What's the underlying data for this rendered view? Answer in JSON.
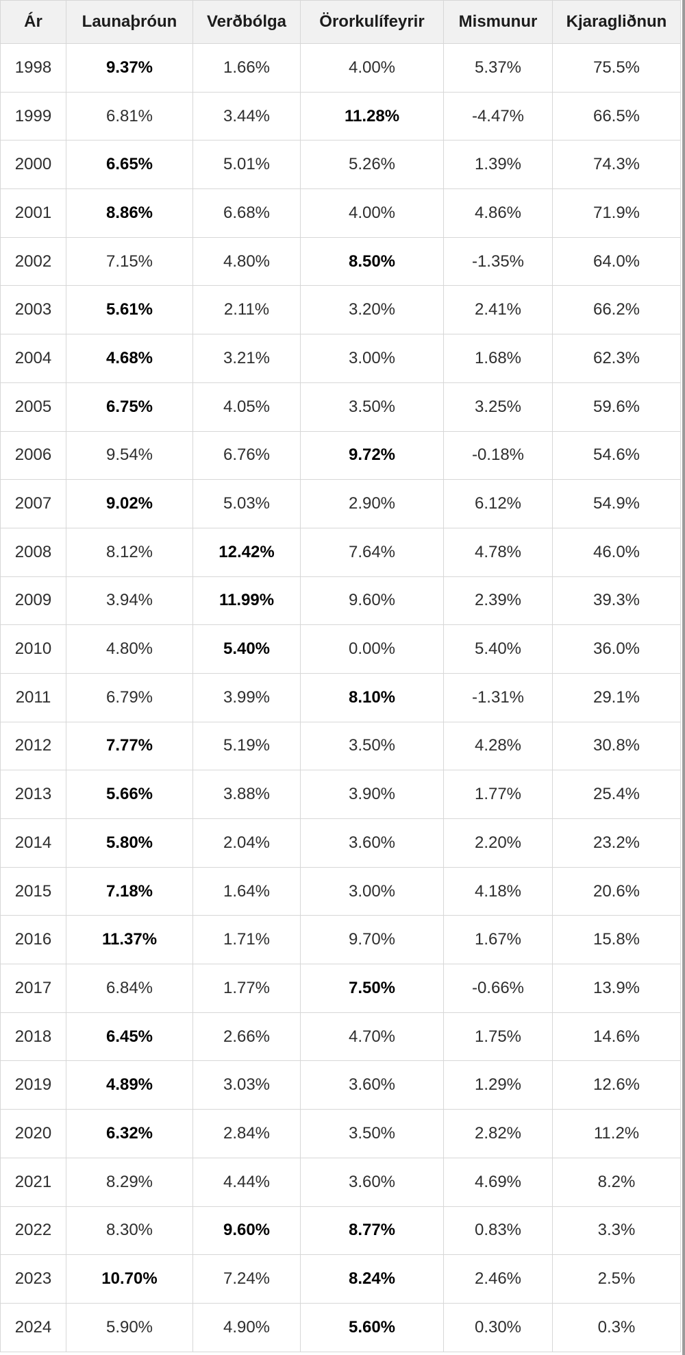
{
  "colors": {
    "header_bg": "#f1f1f1",
    "border": "#d7d7d7",
    "header_text": "#1c1c1c",
    "body_text": "#2e2e2e",
    "bold_text": "#000000",
    "scrollbar": "#9b9b9b"
  },
  "chart_data": {
    "type": "table",
    "title": "",
    "columns": [
      "Ár",
      "Launaþróun",
      "Verðbólga",
      "Örorkulífeyrir",
      "Mismunur",
      "Kjaragliðnun"
    ],
    "rows": [
      {
        "year": "1998",
        "values": [
          "9.37%",
          "1.66%",
          "4.00%",
          "5.37%",
          "75.5%"
        ],
        "bold": [
          0
        ]
      },
      {
        "year": "1999",
        "values": [
          "6.81%",
          "3.44%",
          "11.28%",
          "-4.47%",
          "66.5%"
        ],
        "bold": [
          2
        ]
      },
      {
        "year": "2000",
        "values": [
          "6.65%",
          "5.01%",
          "5.26%",
          "1.39%",
          "74.3%"
        ],
        "bold": [
          0
        ]
      },
      {
        "year": "2001",
        "values": [
          "8.86%",
          "6.68%",
          "4.00%",
          "4.86%",
          "71.9%"
        ],
        "bold": [
          0
        ]
      },
      {
        "year": "2002",
        "values": [
          "7.15%",
          "4.80%",
          "8.50%",
          "-1.35%",
          "64.0%"
        ],
        "bold": [
          2
        ]
      },
      {
        "year": "2003",
        "values": [
          "5.61%",
          "2.11%",
          "3.20%",
          "2.41%",
          "66.2%"
        ],
        "bold": [
          0
        ]
      },
      {
        "year": "2004",
        "values": [
          "4.68%",
          "3.21%",
          "3.00%",
          "1.68%",
          "62.3%"
        ],
        "bold": [
          0
        ]
      },
      {
        "year": "2005",
        "values": [
          "6.75%",
          "4.05%",
          "3.50%",
          "3.25%",
          "59.6%"
        ],
        "bold": [
          0
        ]
      },
      {
        "year": "2006",
        "values": [
          "9.54%",
          "6.76%",
          "9.72%",
          "-0.18%",
          "54.6%"
        ],
        "bold": [
          2
        ]
      },
      {
        "year": "2007",
        "values": [
          "9.02%",
          "5.03%",
          "2.90%",
          "6.12%",
          "54.9%"
        ],
        "bold": [
          0
        ]
      },
      {
        "year": "2008",
        "values": [
          "8.12%",
          "12.42%",
          "7.64%",
          "4.78%",
          "46.0%"
        ],
        "bold": [
          1
        ]
      },
      {
        "year": "2009",
        "values": [
          "3.94%",
          "11.99%",
          "9.60%",
          "2.39%",
          "39.3%"
        ],
        "bold": [
          1
        ]
      },
      {
        "year": "2010",
        "values": [
          "4.80%",
          "5.40%",
          "0.00%",
          "5.40%",
          "36.0%"
        ],
        "bold": [
          1
        ]
      },
      {
        "year": "2011",
        "values": [
          "6.79%",
          "3.99%",
          "8.10%",
          "-1.31%",
          "29.1%"
        ],
        "bold": [
          2
        ]
      },
      {
        "year": "2012",
        "values": [
          "7.77%",
          "5.19%",
          "3.50%",
          "4.28%",
          "30.8%"
        ],
        "bold": [
          0
        ]
      },
      {
        "year": "2013",
        "values": [
          "5.66%",
          "3.88%",
          "3.90%",
          "1.77%",
          "25.4%"
        ],
        "bold": [
          0
        ]
      },
      {
        "year": "2014",
        "values": [
          "5.80%",
          "2.04%",
          "3.60%",
          "2.20%",
          "23.2%"
        ],
        "bold": [
          0
        ]
      },
      {
        "year": "2015",
        "values": [
          "7.18%",
          "1.64%",
          "3.00%",
          "4.18%",
          "20.6%"
        ],
        "bold": [
          0
        ]
      },
      {
        "year": "2016",
        "values": [
          "11.37%",
          "1.71%",
          "9.70%",
          "1.67%",
          "15.8%"
        ],
        "bold": [
          0
        ]
      },
      {
        "year": "2017",
        "values": [
          "6.84%",
          "1.77%",
          "7.50%",
          "-0.66%",
          "13.9%"
        ],
        "bold": [
          2
        ]
      },
      {
        "year": "2018",
        "values": [
          "6.45%",
          "2.66%",
          "4.70%",
          "1.75%",
          "14.6%"
        ],
        "bold": [
          0
        ]
      },
      {
        "year": "2019",
        "values": [
          "4.89%",
          "3.03%",
          "3.60%",
          "1.29%",
          "12.6%"
        ],
        "bold": [
          0
        ]
      },
      {
        "year": "2020",
        "values": [
          "6.32%",
          "2.84%",
          "3.50%",
          "2.82%",
          "11.2%"
        ],
        "bold": [
          0
        ]
      },
      {
        "year": "2021",
        "values": [
          "8.29%",
          "4.44%",
          "3.60%",
          "4.69%",
          "8.2%"
        ],
        "bold": []
      },
      {
        "year": "2022",
        "values": [
          "8.30%",
          "9.60%",
          "8.77%",
          "0.83%",
          "3.3%"
        ],
        "bold": [
          1,
          2
        ]
      },
      {
        "year": "2023",
        "values": [
          "10.70%",
          "7.24%",
          "8.24%",
          "2.46%",
          "2.5%"
        ],
        "bold": [
          0,
          2
        ]
      },
      {
        "year": "2024",
        "values": [
          "5.90%",
          "4.90%",
          "5.60%",
          "0.30%",
          "0.3%"
        ],
        "bold": [
          2
        ]
      }
    ]
  }
}
